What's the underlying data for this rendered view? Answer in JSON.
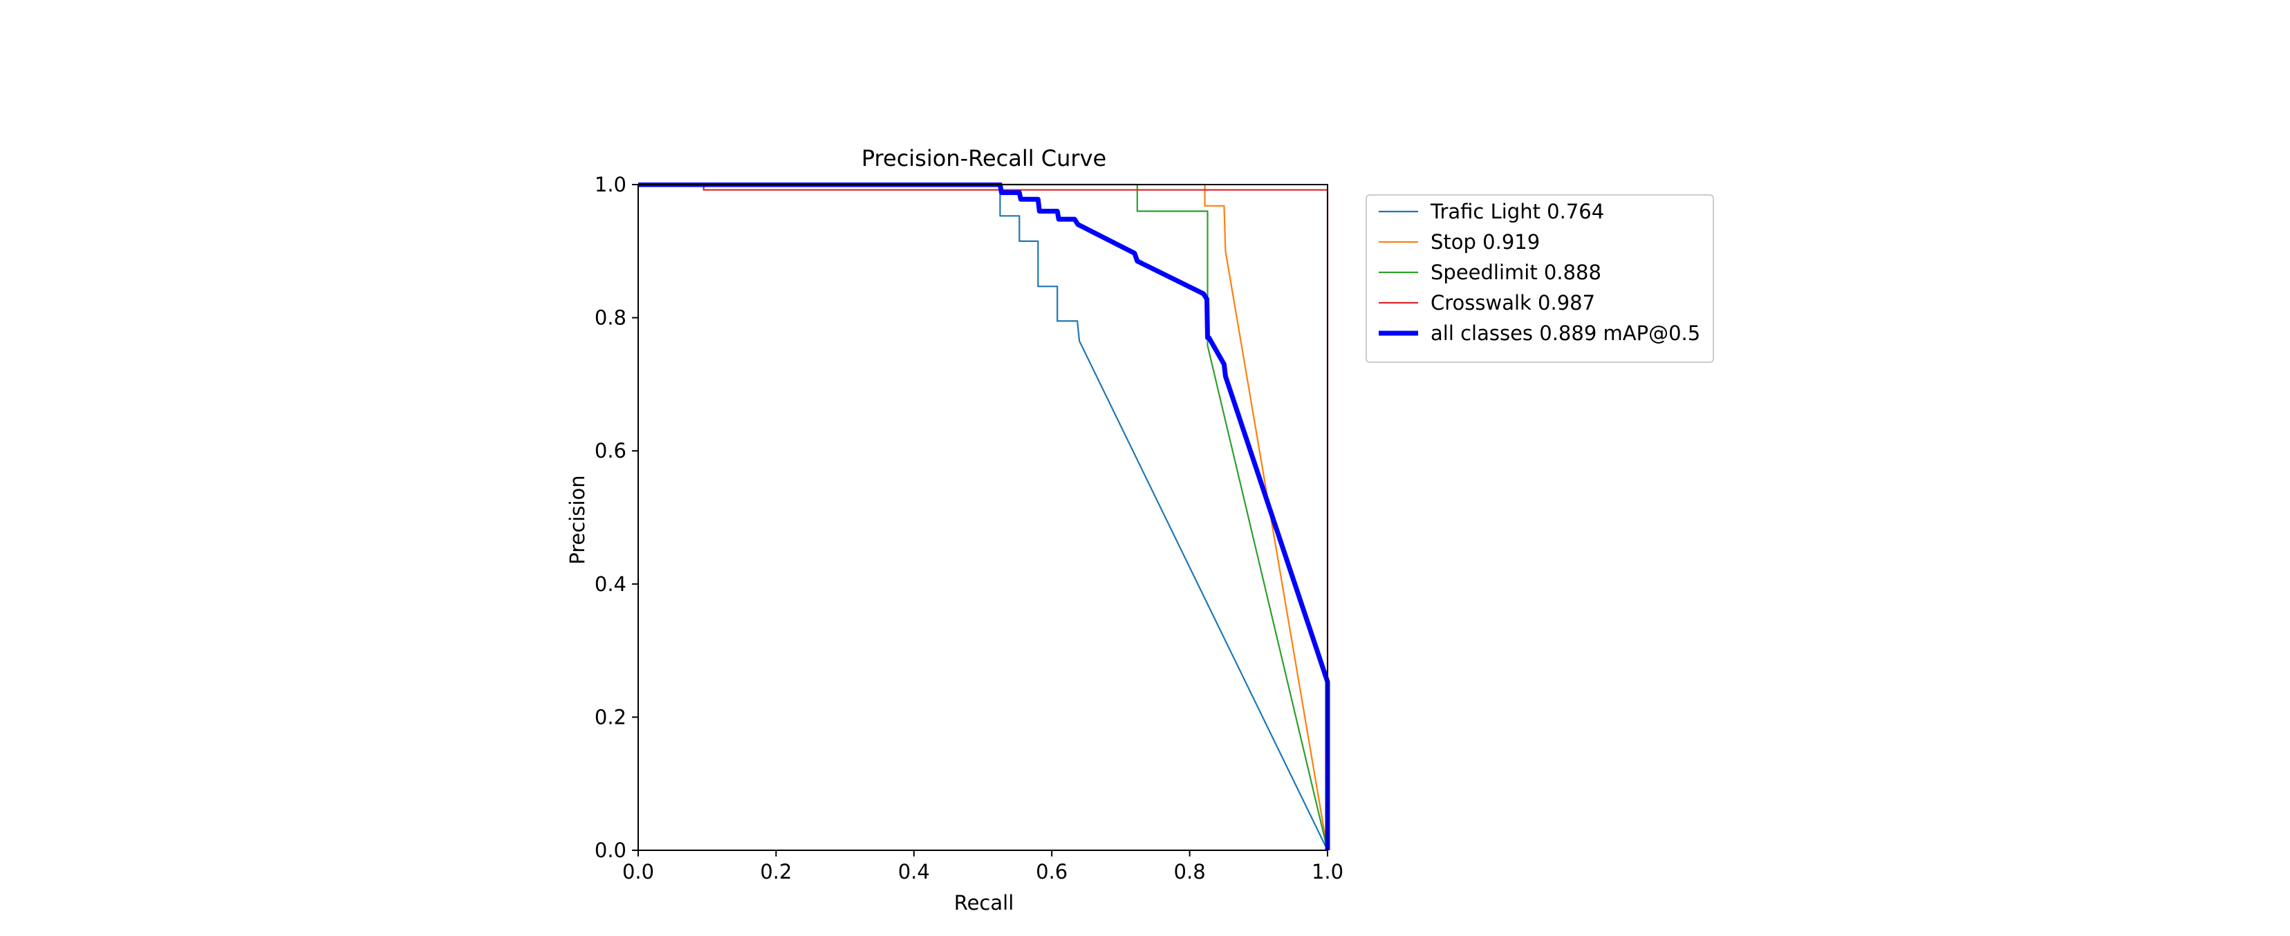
{
  "chart_data": {
    "type": "line",
    "title": "Precision-Recall Curve",
    "xlabel": "Recall",
    "ylabel": "Precision",
    "xlim": [
      0.0,
      1.0
    ],
    "ylim": [
      0.0,
      1.0
    ],
    "xticks": [
      "0.0",
      "0.2",
      "0.4",
      "0.6",
      "0.8",
      "1.0"
    ],
    "yticks": [
      "0.0",
      "0.2",
      "0.4",
      "0.6",
      "0.8",
      "1.0"
    ],
    "grid": false,
    "legend_position": "outside-upper-right",
    "series": [
      {
        "name": "Trafic Light 0.764",
        "color": "#1f77b4",
        "x": [
          0.0,
          0.525,
          0.525,
          0.553,
          0.553,
          0.58,
          0.58,
          0.608,
          0.608,
          0.637,
          0.64,
          1.0
        ],
        "y": [
          1.0,
          1.0,
          0.953,
          0.953,
          0.915,
          0.915,
          0.847,
          0.847,
          0.795,
          0.795,
          0.765,
          0.0
        ]
      },
      {
        "name": "Stop 0.919",
        "color": "#ff7f0e",
        "x": [
          0.0,
          0.822,
          0.822,
          0.85,
          0.852,
          1.0
        ],
        "y": [
          1.0,
          1.0,
          0.968,
          0.968,
          0.9,
          0.0
        ]
      },
      {
        "name": "Speedlimit 0.888",
        "color": "#2ca02c",
        "x": [
          0.0,
          0.724,
          0.724,
          0.826,
          0.826,
          1.0
        ],
        "y": [
          1.0,
          1.0,
          0.96,
          0.96,
          0.758,
          0.0
        ]
      },
      {
        "name": "Crosswalk 0.987",
        "color": "#d62728",
        "x": [
          0.0,
          0.095,
          0.095,
          1.0,
          1.0
        ],
        "y": [
          1.0,
          1.0,
          0.992,
          0.992,
          0.0
        ]
      },
      {
        "name": "all classes 0.889 mAP@0.5",
        "color": "#0000ff",
        "thick": true,
        "x": [
          0.0,
          0.525,
          0.527,
          0.553,
          0.555,
          0.58,
          0.582,
          0.608,
          0.61,
          0.633,
          0.638,
          0.72,
          0.724,
          0.82,
          0.825,
          0.826,
          0.828,
          0.85,
          0.852,
          1.0,
          1.0
        ],
        "y": [
          1.0,
          1.0,
          0.988,
          0.988,
          0.978,
          0.978,
          0.96,
          0.96,
          0.948,
          0.948,
          0.94,
          0.897,
          0.885,
          0.836,
          0.828,
          0.77,
          0.77,
          0.73,
          0.712,
          0.253,
          0.0
        ]
      }
    ]
  }
}
